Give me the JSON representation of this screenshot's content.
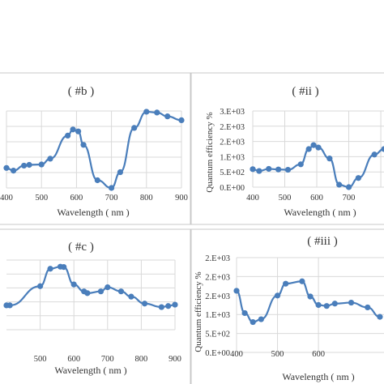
{
  "theme": {
    "series_color": "#4a7ebb",
    "grid_color": "#d9d9d9"
  },
  "chart_data": [
    {
      "type": "line",
      "title": "( #b )",
      "xlabel": "Wavelength ( nm )",
      "ylabel": "",
      "xticks": [
        400,
        500,
        600,
        700,
        800,
        900
      ],
      "yticks": [],
      "xlim": [
        400,
        900
      ],
      "ylim": [
        0,
        2000
      ],
      "legend": "none",
      "grid": true,
      "series": [
        {
          "x": [
            400,
            420,
            450,
            465,
            500,
            525,
            575,
            590,
            605,
            620,
            660,
            700,
            725,
            765,
            800,
            830,
            860,
            900
          ],
          "y": [
            520,
            450,
            580,
            600,
            610,
            760,
            1360,
            1520,
            1470,
            1120,
            200,
            0,
            410,
            1560,
            1980,
            1960,
            1860,
            1760
          ]
        }
      ]
    },
    {
      "type": "line",
      "title": "( #ii )",
      "xlabel": "Wavelength ( nm )",
      "ylabel": "Quantum efficiency %",
      "yticks": [
        "0.E+00",
        "5.E+02",
        "1.E+03",
        "2.E+03",
        "2.E+03",
        "3.E+03"
      ],
      "xticks": [
        400,
        500,
        600,
        700,
        800
      ],
      "xlim": [
        400,
        810
      ],
      "ylim": [
        0,
        2500
      ],
      "legend": "none",
      "grid": true,
      "series": [
        {
          "x": [
            400,
            420,
            450,
            480,
            510,
            550,
            575,
            590,
            605,
            640,
            670,
            700,
            730,
            780,
            810
          ],
          "y": [
            590,
            530,
            600,
            580,
            570,
            750,
            1250,
            1380,
            1300,
            940,
            80,
            0,
            300,
            1070,
            1250
          ]
        }
      ]
    },
    {
      "type": "line",
      "title": "( #c )",
      "xlabel": "Wavelength ( nm )",
      "ylabel": "",
      "xticks": [
        500,
        600,
        700,
        800,
        900
      ],
      "yticks": [],
      "xlim": [
        400,
        900
      ],
      "ylim": [
        0,
        2000
      ],
      "legend": "none",
      "grid": true,
      "series": [
        {
          "x": [
            400,
            410,
            500,
            530,
            560,
            570,
            600,
            630,
            640,
            680,
            700,
            740,
            770,
            810,
            860,
            880,
            900
          ],
          "y": [
            700,
            700,
            1250,
            1750,
            1810,
            1800,
            1300,
            1100,
            1050,
            1100,
            1220,
            1100,
            950,
            750,
            650,
            680,
            720
          ]
        }
      ]
    },
    {
      "type": "line",
      "title": "( #iii )",
      "xlabel": "Wavelength ( nm )",
      "ylabel": "Quantum efficiency %",
      "yticks": [
        "0.E+00",
        "5.E+02",
        "1.E+03",
        "2.E+03",
        "2.E+03",
        "2.E+03"
      ],
      "xticks": [
        400,
        500,
        600
      ],
      "xlim": [
        400,
        760
      ],
      "ylim": [
        0,
        2000
      ],
      "legend": "none",
      "grid": true,
      "series": [
        {
          "x": [
            400,
            420,
            440,
            460,
            500,
            520,
            560,
            580,
            600,
            620,
            640,
            680,
            720,
            750
          ],
          "y": [
            1300,
            830,
            640,
            700,
            1200,
            1450,
            1500,
            1180,
            1000,
            980,
            1030,
            1050,
            950,
            750
          ]
        }
      ]
    }
  ]
}
